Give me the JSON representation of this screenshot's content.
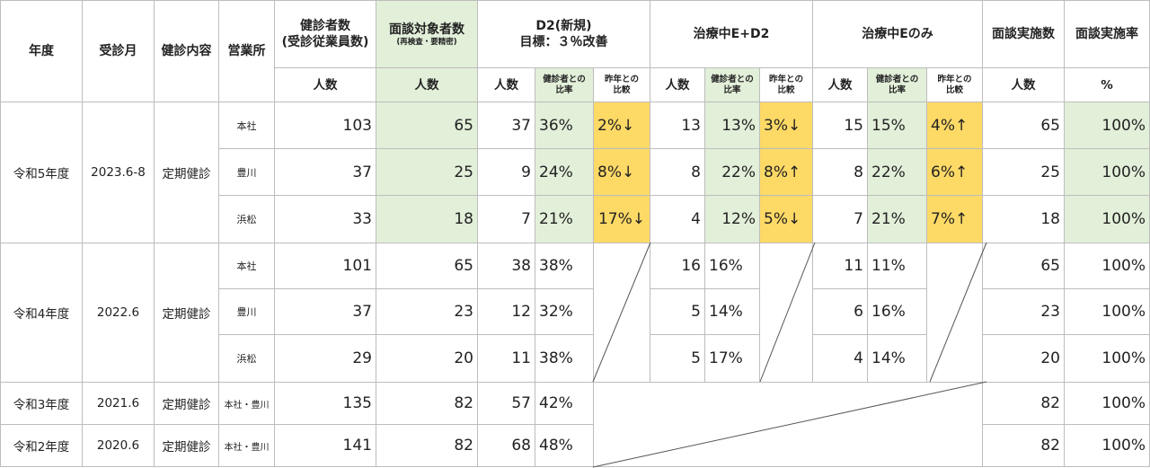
{
  "headers": {
    "year": "年度",
    "month": "受診月",
    "content": "健診内容",
    "office": "営業所",
    "examinees_line1": "健診者数",
    "examinees_line2": "(受診従業員数)",
    "targets_line1": "面談対象者数",
    "targets_line2": "(再検査・要精密)",
    "d2_line1": "D2(新規)",
    "d2_line2": "目標：３％改善",
    "treat_e_d2": "治療中E+D2",
    "treat_e_only": "治療中Eのみ",
    "interviews": "面談実施数",
    "interview_rate": "面談実施率",
    "people": "人数",
    "ratio_line1": "健診者との",
    "ratio_line2": "比率",
    "compare_line1": "昨年との",
    "compare_line2": "比較",
    "percent": "%"
  },
  "groups": [
    {
      "year": "令和5年度",
      "month": "2023.6-8",
      "content": "定期健診",
      "rows": [
        {
          "office": "本社",
          "examinees": "103",
          "targets": "65",
          "d2": "37",
          "d2_ratio": "36%",
          "d2_cmp": "2%↓",
          "ed2": "13",
          "ed2_ratio": "13%",
          "ed2_cmp": "3%↓",
          "e": "15",
          "e_ratio": "15%",
          "e_cmp": "4%↑",
          "interviews": "65",
          "rate": "100%"
        },
        {
          "office": "豊川",
          "examinees": "37",
          "targets": "25",
          "d2": "9",
          "d2_ratio": "24%",
          "d2_cmp": "8%↓",
          "ed2": "8",
          "ed2_ratio": "22%",
          "ed2_cmp": "8%↑",
          "e": "8",
          "e_ratio": "22%",
          "e_cmp": "6%↑",
          "interviews": "25",
          "rate": "100%"
        },
        {
          "office": "浜松",
          "examinees": "33",
          "targets": "18",
          "d2": "7",
          "d2_ratio": "21%",
          "d2_cmp": "17%↓",
          "ed2": "4",
          "ed2_ratio": "12%",
          "ed2_cmp": "5%↓",
          "e": "7",
          "e_ratio": "21%",
          "e_cmp": "7%↑",
          "interviews": "18",
          "rate": "100%"
        }
      ]
    },
    {
      "year": "令和4年度",
      "month": "2022.6",
      "content": "定期健診",
      "rows": [
        {
          "office": "本社",
          "examinees": "101",
          "targets": "65",
          "d2": "38",
          "d2_ratio": "38%",
          "ed2": "16",
          "ed2_ratio": "16%",
          "e": "11",
          "e_ratio": "11%",
          "interviews": "65",
          "rate": "100%"
        },
        {
          "office": "豊川",
          "examinees": "37",
          "targets": "23",
          "d2": "12",
          "d2_ratio": "32%",
          "ed2": "5",
          "ed2_ratio": "14%",
          "e": "6",
          "e_ratio": "16%",
          "interviews": "23",
          "rate": "100%"
        },
        {
          "office": "浜松",
          "examinees": "29",
          "targets": "20",
          "d2": "11",
          "d2_ratio": "38%",
          "ed2": "5",
          "ed2_ratio": "17%",
          "e": "4",
          "e_ratio": "14%",
          "interviews": "20",
          "rate": "100%"
        }
      ]
    }
  ],
  "single_rows": [
    {
      "year": "令和3年度",
      "month": "2021.6",
      "content": "定期健診",
      "office": "本社・豊川",
      "examinees": "135",
      "targets": "82",
      "d2": "57",
      "d2_ratio": "42%",
      "interviews": "82",
      "rate": "100%"
    },
    {
      "year": "令和2年度",
      "month": "2020.6",
      "content": "定期健診",
      "office": "本社・豊川",
      "examinees": "141",
      "targets": "82",
      "d2": "68",
      "d2_ratio": "48%",
      "interviews": "82",
      "rate": "100%"
    }
  ]
}
